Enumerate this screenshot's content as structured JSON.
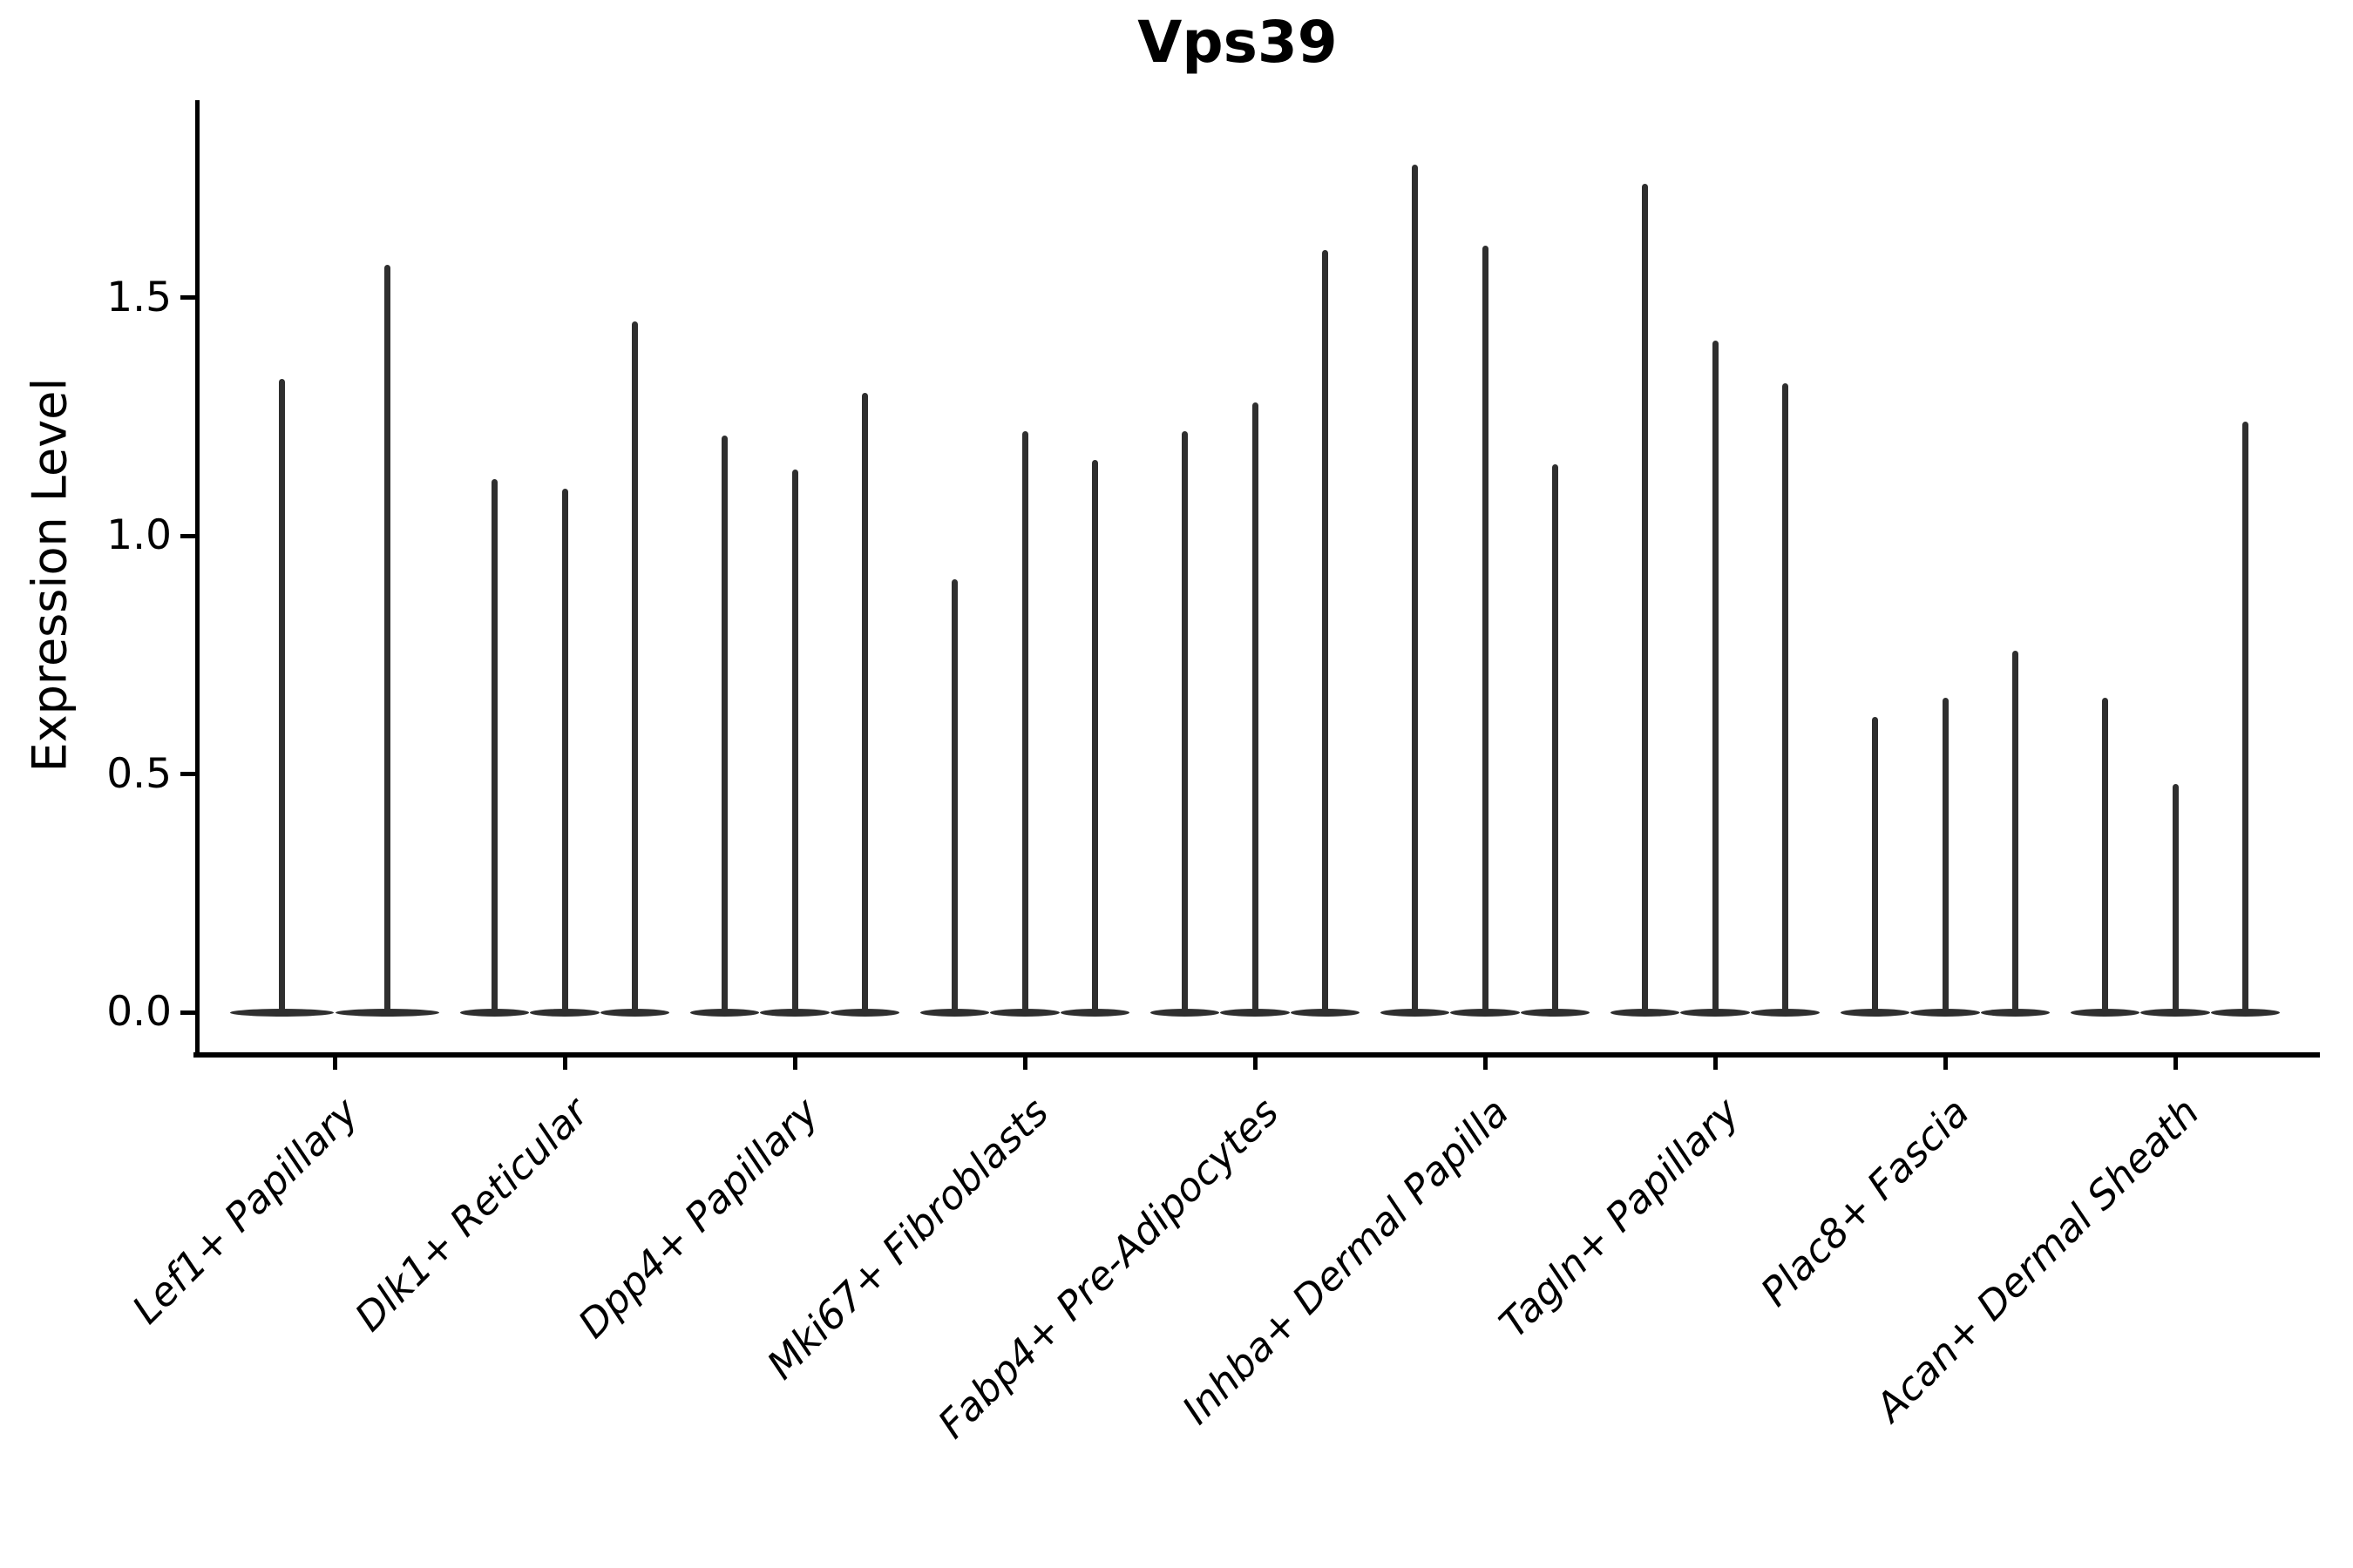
{
  "figure": {
    "title": "Vps39",
    "y_axis": {
      "label": "Expression Level",
      "tick_labels": [
        "0.0",
        "0.5",
        "1.0",
        "1.5"
      ]
    }
  },
  "chart_data": {
    "type": "violin",
    "title": "Vps39",
    "xlabel": "",
    "ylabel": "Expression Level",
    "ylim": [
      -0.08,
      1.92
    ],
    "yticks": [
      0.0,
      0.5,
      1.0,
      1.5
    ],
    "grid": false,
    "legend": "none",
    "x_tick_label_rotation_deg": 45,
    "categories": [
      "Lef1+ Papillary",
      "Dlk1+ Reticular",
      "Dpp4+ Papillary",
      "Mki67+ Fibroblasts",
      "Fabp4+ Pre-Adipocytes",
      "Inhba+ Dermal Papilla",
      "Tagln+ Papillary",
      "Plac8+ Fascia",
      "Acan+ Dermal Sheath"
    ],
    "series": [
      {
        "category": "Lef1+ Papillary",
        "violin_peaks": [
          1.33,
          1.57
        ]
      },
      {
        "category": "Dlk1+ Reticular",
        "violin_peaks": [
          1.12,
          1.1,
          1.45
        ]
      },
      {
        "category": "Dpp4+ Papillary",
        "violin_peaks": [
          1.21,
          1.14,
          1.3
        ]
      },
      {
        "category": "Mki67+ Fibroblasts",
        "violin_peaks": [
          0.91,
          1.22,
          1.16
        ]
      },
      {
        "category": "Fabp4+ Pre-Adipocytes",
        "violin_peaks": [
          1.22,
          1.28,
          1.6
        ]
      },
      {
        "category": "Inhba+ Dermal Papilla",
        "violin_peaks": [
          1.78,
          1.61,
          1.15
        ]
      },
      {
        "category": "Tagln+ Papillary",
        "violin_peaks": [
          1.74,
          1.41,
          1.32
        ]
      },
      {
        "category": "Plac8+ Fascia",
        "violin_peaks": [
          0.62,
          0.66,
          0.76
        ]
      },
      {
        "category": "Acan+ Dermal Sheath",
        "violin_peaks": [
          0.66,
          0.48,
          1.24
        ]
      }
    ],
    "style": {
      "violin_color": "#2f2f2f",
      "axis_color": "#000000",
      "background": "#ffffff"
    }
  }
}
